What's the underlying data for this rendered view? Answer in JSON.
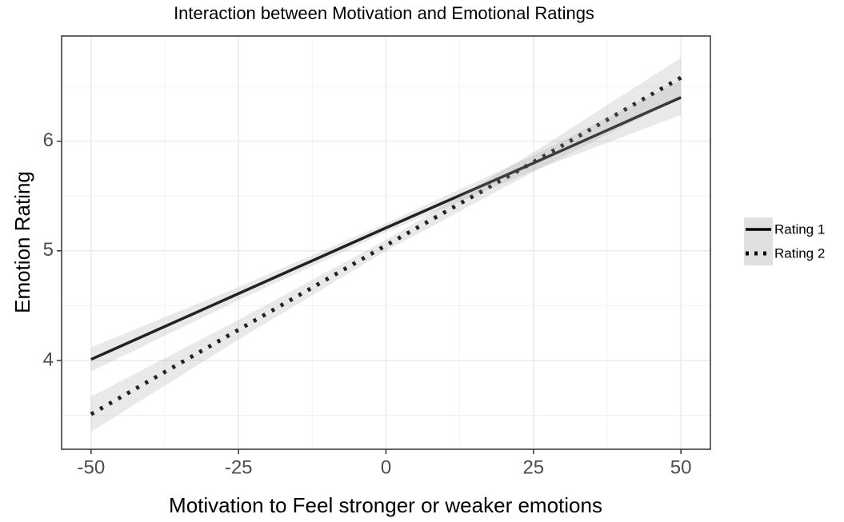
{
  "chart_data": {
    "type": "line",
    "title": "Interaction between Motivation and Emotional Ratings",
    "x_label": "Motivation to Feel stronger or weaker emotions",
    "y_label": "Emotion Rating",
    "x": [
      -50,
      -25,
      0,
      25,
      50
    ],
    "series": [
      {
        "name": "Rating 1",
        "color": "#000000",
        "linestyle": "solid",
        "values": [
          4.01,
          4.61,
          5.21,
          5.8,
          6.4
        ],
        "lower": [
          3.9,
          4.55,
          5.17,
          5.73,
          6.24
        ],
        "upper": [
          4.12,
          4.67,
          5.25,
          5.87,
          6.56
        ]
      },
      {
        "name": "Rating 2",
        "color": "#000000",
        "linestyle": "dotted",
        "values": [
          3.51,
          4.28,
          5.05,
          5.81,
          6.58
        ],
        "lower": [
          3.35,
          4.19,
          5.0,
          5.72,
          6.4
        ],
        "upper": [
          3.67,
          4.37,
          5.1,
          5.9,
          6.76
        ]
      }
    ],
    "ribbon_color": "#999999",
    "xlim": [
      -55,
      55
    ],
    "ylim": [
      3.19,
      6.96
    ],
    "xticks": [
      -50,
      -25,
      0,
      25,
      50
    ],
    "yticks": [
      4,
      5,
      6
    ],
    "grid": true,
    "legend": "right"
  }
}
